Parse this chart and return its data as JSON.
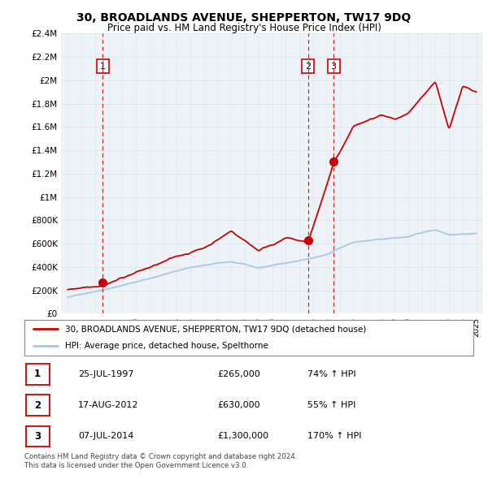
{
  "title": "30, BROADLANDS AVENUE, SHEPPERTON, TW17 9DQ",
  "subtitle": "Price paid vs. HM Land Registry's House Price Index (HPI)",
  "ylabel_ticks": [
    "£0",
    "£200K",
    "£400K",
    "£600K",
    "£800K",
    "£1M",
    "£1.2M",
    "£1.4M",
    "£1.6M",
    "£1.8M",
    "£2M",
    "£2.2M",
    "£2.4M"
  ],
  "ytick_values": [
    0,
    200000,
    400000,
    600000,
    800000,
    1000000,
    1200000,
    1400000,
    1600000,
    1800000,
    2000000,
    2200000,
    2400000
  ],
  "hpi_color": "#a8c8e8",
  "price_color": "#cc0000",
  "grid_color": "#dce8f0",
  "plot_bg_color": "#eef3f8",
  "sale_dates": [
    1997.56,
    2012.63,
    2014.52
  ],
  "sale_prices": [
    265000,
    630000,
    1300000
  ],
  "sale_labels": [
    "1",
    "2",
    "3"
  ],
  "legend_label_red": "30, BROADLANDS AVENUE, SHEPPERTON, TW17 9DQ (detached house)",
  "legend_label_blue": "HPI: Average price, detached house, Spelthorne",
  "table_rows": [
    [
      "1",
      "25-JUL-1997",
      "£265,000",
      "74% ↑ HPI"
    ],
    [
      "2",
      "17-AUG-2012",
      "£630,000",
      "55% ↑ HPI"
    ],
    [
      "3",
      "07-JUL-2014",
      "£1,300,000",
      "170% ↑ HPI"
    ]
  ],
  "footer": "Contains HM Land Registry data © Crown copyright and database right 2024.\nThis data is licensed under the Open Government Licence v3.0.",
  "xmin": 1994.5,
  "xmax": 2025.5,
  "ymin": 0,
  "ymax": 2400000
}
